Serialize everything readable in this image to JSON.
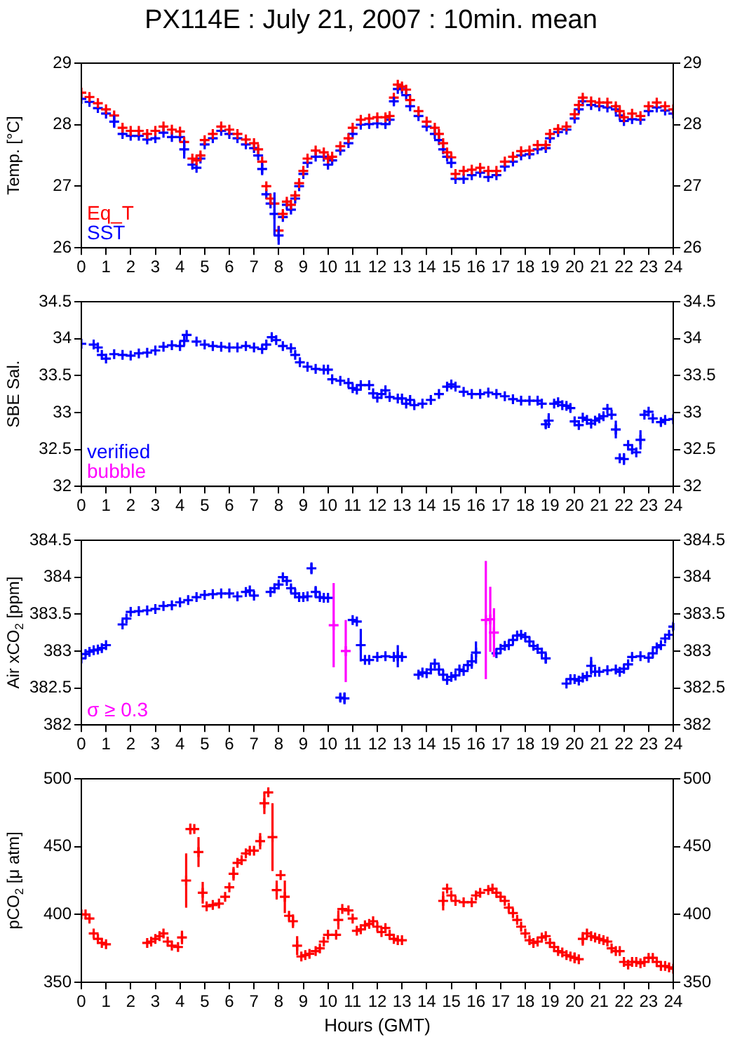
{
  "chart_data": [
    {
      "type": "scatter",
      "title": "PX114E : July 21, 2007 : 10min. mean",
      "ylabel": "Temp. [°C]",
      "legend": "bottom left",
      "marker": "cross",
      "xlim": [
        0,
        24
      ],
      "xticks": [
        0,
        1,
        2,
        3,
        4,
        5,
        6,
        7,
        8,
        9,
        10,
        11,
        12,
        13,
        14,
        15,
        16,
        17,
        18,
        19,
        20,
        21,
        22,
        23,
        24
      ],
      "ylim": [
        26,
        29
      ],
      "yticks": [
        26,
        27,
        28,
        29
      ],
      "y2lim": [
        26,
        29
      ],
      "y2ticks": [
        26,
        27,
        28,
        29
      ],
      "x": [
        0,
        0.33,
        0.67,
        1,
        1.33,
        1.67,
        2,
        2.33,
        2.67,
        3,
        3.33,
        3.67,
        4,
        4.17,
        4.5,
        4.67,
        4.83,
        5,
        5.33,
        5.67,
        6,
        6.33,
        6.67,
        7,
        7.17,
        7.33,
        7.5,
        7.67,
        7.83,
        8,
        8.17,
        8.33,
        8.5,
        8.67,
        8.83,
        9,
        9.17,
        9.5,
        9.83,
        10,
        10.17,
        10.5,
        10.83,
        11,
        11.33,
        11.67,
        12,
        12.33,
        12.5,
        12.67,
        12.83,
        13,
        13.17,
        13.33,
        13.67,
        14,
        14.33,
        14.5,
        14.67,
        14.83,
        15,
        15.17,
        15.5,
        15.83,
        16.17,
        16.5,
        16.83,
        17.17,
        17.5,
        17.83,
        18.17,
        18.5,
        18.83,
        19,
        19.33,
        19.67,
        20,
        20.17,
        20.33,
        20.67,
        21,
        21.33,
        21.67,
        21.83,
        22,
        22.33,
        22.67,
        23,
        23.33,
        23.67,
        24
      ],
      "series": [
        {
          "name": "Eq_T",
          "color": "#ff0000",
          "values": [
            28.52,
            28.45,
            28.35,
            28.25,
            28.15,
            27.95,
            27.9,
            27.9,
            27.85,
            27.9,
            27.97,
            27.92,
            27.89,
            27.72,
            27.45,
            27.42,
            27.5,
            27.75,
            27.85,
            27.97,
            27.92,
            27.85,
            27.76,
            27.7,
            27.6,
            27.4,
            27.0,
            26.8,
            26.72,
            26.28,
            26.55,
            26.75,
            26.7,
            26.85,
            27.05,
            27.25,
            27.45,
            27.58,
            27.55,
            27.45,
            27.48,
            27.65,
            27.78,
            27.95,
            28.08,
            28.1,
            28.12,
            28.12,
            28.14,
            28.44,
            28.65,
            28.62,
            28.57,
            28.4,
            28.22,
            28.05,
            27.95,
            27.85,
            27.7,
            27.55,
            27.47,
            27.2,
            27.25,
            27.27,
            27.3,
            27.25,
            27.25,
            27.4,
            27.48,
            27.57,
            27.58,
            27.67,
            27.67,
            27.85,
            27.93,
            27.97,
            28.17,
            28.32,
            28.44,
            28.38,
            28.36,
            28.36,
            28.3,
            28.22,
            28.12,
            28.18,
            28.14,
            28.3,
            28.36,
            28.3,
            28.25
          ]
        },
        {
          "name": "SST",
          "color": "#0000ff",
          "values": [
            28.42,
            28.37,
            28.27,
            28.18,
            28.05,
            27.85,
            27.82,
            27.82,
            27.76,
            27.78,
            27.87,
            27.8,
            27.8,
            27.6,
            27.35,
            27.3,
            27.45,
            27.68,
            27.78,
            27.9,
            27.85,
            27.78,
            27.68,
            27.62,
            27.5,
            27.28,
            26.87,
            26.72,
            26.55,
            26.2,
            26.5,
            26.7,
            26.62,
            26.8,
            27.0,
            27.2,
            27.38,
            27.48,
            27.48,
            27.35,
            27.42,
            27.58,
            27.7,
            27.85,
            28.0,
            28.01,
            28.02,
            28.01,
            28.08,
            28.38,
            28.58,
            28.58,
            28.48,
            28.3,
            28.14,
            27.97,
            27.85,
            27.75,
            27.6,
            27.48,
            27.38,
            27.12,
            27.12,
            27.18,
            27.22,
            27.15,
            27.18,
            27.32,
            27.4,
            27.5,
            27.52,
            27.6,
            27.62,
            27.78,
            27.88,
            27.92,
            28.1,
            28.25,
            28.38,
            28.32,
            28.3,
            28.28,
            28.25,
            28.15,
            28.06,
            28.09,
            28.08,
            28.22,
            28.28,
            28.23,
            28.18
          ],
          "errors": [
            null,
            null,
            null,
            null,
            0.1,
            null,
            null,
            null,
            null,
            null,
            null,
            null,
            null,
            0.15,
            null,
            null,
            null,
            null,
            null,
            null,
            null,
            null,
            null,
            null,
            null,
            0.1,
            null,
            null,
            0.35,
            0.15,
            null,
            null,
            null,
            null,
            null,
            null,
            null,
            null,
            null,
            null,
            null,
            null,
            null,
            null,
            null,
            null,
            null,
            null,
            null,
            0.07,
            null,
            null,
            null,
            null,
            null,
            null,
            null,
            null,
            null,
            null,
            0.08,
            null,
            null,
            null,
            null,
            null,
            null,
            null,
            null,
            null,
            null,
            null,
            null,
            null,
            null,
            null,
            null,
            null,
            null,
            null,
            null,
            null,
            null,
            null,
            null,
            null,
            null,
            null,
            null,
            null,
            null
          ]
        }
      ]
    },
    {
      "type": "scatter",
      "ylabel": "SBE Sal.",
      "legend": "bottom left",
      "marker": "cross",
      "xlim": [
        0,
        24
      ],
      "xticks": [
        0,
        1,
        2,
        3,
        4,
        5,
        6,
        7,
        8,
        9,
        10,
        11,
        12,
        13,
        14,
        15,
        16,
        17,
        18,
        19,
        20,
        21,
        22,
        23,
        24
      ],
      "ylim": [
        32,
        34.5
      ],
      "yticks": [
        32,
        32.5,
        33,
        33.5,
        34,
        34.5
      ],
      "y2lim": [
        32,
        34.5
      ],
      "y2ticks": [
        32,
        32.5,
        33,
        33.5,
        34,
        34.5
      ],
      "series": [
        {
          "name": "verified",
          "color": "#0000ff",
          "x": [
            0,
            0.5,
            0.67,
            0.83,
            1,
            1.33,
            1.67,
            2,
            2.33,
            2.67,
            3,
            3.33,
            3.67,
            4,
            4.17,
            4.27,
            4.67,
            5,
            5.33,
            5.67,
            6,
            6.33,
            6.67,
            7,
            7.33,
            7.5,
            7.72,
            7.9,
            8.17,
            8.5,
            8.67,
            8.86,
            9.17,
            9.5,
            9.83,
            10,
            10.17,
            10.5,
            10.83,
            11,
            11.17,
            11.33,
            11.67,
            11.83,
            12,
            12.17,
            12.33,
            12.5,
            12.83,
            13,
            13.17,
            13.33,
            13.5,
            13.83,
            14.17,
            14.5,
            14.83,
            15,
            15.17,
            15.5,
            15.83,
            16.17,
            16.5,
            16.83,
            17.17,
            17.5,
            17.83,
            18.17,
            18.5,
            18.67,
            18.83,
            18.95,
            19.17,
            19.33,
            19.5,
            19.67,
            19.83,
            20,
            20.17,
            20.33,
            20.5,
            20.67,
            20.83,
            21,
            21.17,
            21.33,
            21.5,
            21.67,
            21.83,
            22,
            22.17,
            22.33,
            22.5,
            22.67,
            22.83,
            23,
            23.17,
            23.5,
            23.67,
            24
          ],
          "values": [
            33.93,
            33.92,
            33.88,
            33.78,
            33.73,
            33.79,
            33.78,
            33.77,
            33.8,
            33.81,
            33.84,
            33.89,
            33.91,
            33.9,
            33.97,
            34.05,
            33.96,
            33.92,
            33.9,
            33.89,
            33.88,
            33.88,
            33.9,
            33.88,
            33.86,
            33.92,
            34.02,
            33.98,
            33.9,
            33.87,
            33.78,
            33.68,
            33.62,
            33.59,
            33.58,
            33.58,
            33.45,
            33.43,
            33.4,
            33.33,
            33.31,
            33.37,
            33.37,
            33.26,
            33.2,
            33.25,
            33.3,
            33.21,
            33.19,
            33.19,
            33.12,
            33.17,
            33.1,
            33.12,
            33.17,
            33.25,
            33.35,
            33.38,
            33.35,
            33.28,
            33.25,
            33.25,
            33.27,
            33.25,
            33.22,
            33.18,
            33.16,
            33.16,
            33.16,
            33.12,
            32.84,
            32.89,
            33.12,
            33.14,
            33.1,
            33.09,
            33.06,
            32.88,
            32.83,
            32.93,
            32.9,
            32.85,
            32.89,
            32.92,
            32.95,
            33.05,
            32.97,
            32.77,
            32.38,
            32.37,
            32.56,
            32.5,
            32.46,
            32.63,
            32.97,
            33.01,
            32.92,
            32.87,
            32.9,
            32.91
          ],
          "errors": [
            null,
            null,
            null,
            null,
            null,
            null,
            null,
            null,
            null,
            null,
            null,
            null,
            null,
            null,
            null,
            null,
            null,
            null,
            null,
            null,
            null,
            null,
            null,
            null,
            null,
            null,
            null,
            null,
            null,
            null,
            null,
            null,
            null,
            null,
            null,
            null,
            null,
            null,
            null,
            null,
            null,
            null,
            null,
            null,
            null,
            null,
            null,
            null,
            null,
            null,
            null,
            null,
            null,
            null,
            null,
            null,
            null,
            null,
            null,
            null,
            null,
            null,
            null,
            null,
            null,
            null,
            null,
            null,
            null,
            null,
            0.05,
            0.1,
            null,
            null,
            null,
            null,
            0.05,
            null,
            null,
            null,
            null,
            null,
            null,
            null,
            null,
            null,
            null,
            0.12,
            null,
            0.08,
            null,
            null,
            null,
            0.13,
            null,
            null,
            null,
            0.05,
            null,
            null
          ]
        },
        {
          "name": "bubble",
          "color": "#ff00ff"
        }
      ]
    },
    {
      "type": "scatter",
      "ylabel": "Air xCO$_{2}$ [ppm]",
      "legend": "bottom left",
      "marker": "cross",
      "xlim": [
        0,
        24
      ],
      "xticks": [
        0,
        1,
        2,
        3,
        4,
        5,
        6,
        7,
        8,
        9,
        10,
        11,
        12,
        13,
        14,
        15,
        16,
        17,
        18,
        19,
        20,
        21,
        22,
        23,
        24
      ],
      "ylim": [
        382,
        384.5
      ],
      "yticks": [
        382,
        382.5,
        383,
        383.5,
        384,
        384.5
      ],
      "y2lim": [
        382,
        384.5
      ],
      "y2ticks": [
        382,
        382.5,
        383,
        383.5,
        384,
        384.5
      ],
      "series": [
        {
          "color": "#0000ff",
          "x": [
            0,
            0.17,
            0.33,
            0.5,
            0.67,
            0.83,
            1,
            1.67,
            1.83,
            2,
            2.33,
            2.67,
            3,
            3.33,
            3.67,
            4,
            4.33,
            4.67,
            5,
            5.33,
            5.67,
            6,
            6.33,
            6.67,
            6.83,
            7,
            7.67,
            7.83,
            8,
            8.17,
            8.33,
            8.5,
            8.67,
            8.83,
            9,
            9.17,
            9.33,
            9.5,
            9.67,
            9.83,
            10,
            10.5,
            10.67,
            11,
            11.17,
            11.33,
            11.5,
            11.67,
            12,
            12.33,
            12.67,
            12.83,
            13,
            13.67,
            13.83,
            14,
            14.17,
            14.33,
            14.5,
            14.67,
            14.83,
            15,
            15.17,
            15.33,
            15.5,
            15.67,
            15.83,
            16,
            16.83,
            17,
            17.17,
            17.33,
            17.5,
            17.67,
            17.83,
            18,
            18.17,
            18.33,
            18.5,
            18.67,
            18.83,
            19.67,
            19.83,
            20,
            20.17,
            20.33,
            20.5,
            20.67,
            20.83,
            21,
            21.33,
            21.67,
            21.83,
            22,
            22.17,
            22.33,
            22.67,
            23,
            23.17,
            23.33,
            23.5,
            23.67,
            23.83,
            24
          ],
          "values": [
            382.9,
            382.96,
            382.99,
            383.01,
            383.02,
            383.04,
            383.08,
            383.36,
            383.44,
            383.53,
            383.54,
            383.55,
            383.57,
            383.61,
            383.62,
            383.66,
            383.69,
            383.73,
            383.76,
            383.77,
            383.78,
            383.78,
            383.74,
            383.8,
            383.82,
            383.75,
            383.8,
            383.85,
            383.9,
            384,
            383.95,
            383.85,
            383.78,
            383.73,
            383.73,
            383.74,
            384.12,
            383.8,
            383.73,
            383.72,
            383.72,
            382.37,
            382.36,
            383.42,
            383.4,
            383.08,
            382.88,
            382.88,
            382.92,
            382.93,
            382.92,
            382.93,
            382.92,
            382.68,
            382.71,
            382.7,
            382.75,
            382.83,
            382.75,
            382.68,
            382.61,
            382.65,
            382.67,
            382.75,
            382.73,
            382.81,
            382.86,
            382.98,
            382.97,
            383.03,
            383.07,
            383.08,
            383.15,
            383.21,
            383.22,
            383.19,
            383.13,
            383.07,
            383.03,
            382.98,
            382.9,
            382.56,
            382.62,
            382.62,
            382.6,
            382.64,
            382.66,
            382.8,
            382.72,
            382.72,
            382.74,
            382.75,
            382.72,
            382.76,
            382.82,
            382.92,
            382.93,
            382.91,
            382.97,
            383.05,
            383.08,
            383.17,
            383.22,
            383.33
          ],
          "errors": [
            null,
            null,
            null,
            null,
            null,
            null,
            null,
            null,
            null,
            null,
            null,
            null,
            null,
            null,
            null,
            null,
            null,
            null,
            null,
            null,
            null,
            null,
            null,
            null,
            null,
            null,
            null,
            null,
            null,
            null,
            null,
            null,
            null,
            null,
            null,
            null,
            0.08,
            0.08,
            null,
            null,
            null,
            0.05,
            0.08,
            null,
            null,
            0.22,
            null,
            null,
            null,
            null,
            null,
            0.15,
            null,
            null,
            null,
            null,
            null,
            null,
            null,
            null,
            null,
            null,
            null,
            null,
            null,
            null,
            0.1,
            0.15,
            null,
            null,
            null,
            null,
            null,
            null,
            null,
            null,
            null,
            null,
            null,
            null,
            0.07,
            null,
            null,
            null,
            null,
            null,
            null,
            0.12,
            null,
            null,
            null,
            null,
            null,
            null,
            null,
            null,
            null,
            null,
            null,
            null,
            null,
            null,
            null,
            0.05
          ]
        },
        {
          "name": "σ ≥ 0.3",
          "color": "#ff00ff",
          "x": [
            10.23,
            10.72,
            16.4,
            16.58,
            16.73
          ],
          "values": [
            383.35,
            383.0,
            383.42,
            383.43,
            383.25
          ],
          "errors": [
            0.57,
            0.42,
            0.8,
            0.44,
            0.33
          ]
        }
      ]
    },
    {
      "type": "scatter",
      "ylabel": "pCO$_{2}$ [μ atm]",
      "xlabel": "Hours (GMT)",
      "marker": "cross",
      "xlim": [
        0,
        24
      ],
      "xticks": [
        0,
        1,
        2,
        3,
        4,
        5,
        6,
        7,
        8,
        9,
        10,
        11,
        12,
        13,
        14,
        15,
        16,
        17,
        18,
        19,
        20,
        21,
        22,
        23,
        24
      ],
      "ylim": [
        350,
        500
      ],
      "yticks": [
        350,
        400,
        450,
        500
      ],
      "y2lim": [
        350,
        500
      ],
      "y2ticks": [
        350,
        400,
        450,
        500
      ],
      "series": [
        {
          "color": "#ff0000",
          "x": [
            0,
            0.17,
            0.33,
            0.5,
            0.67,
            0.83,
            1,
            2.67,
            2.83,
            3,
            3.17,
            3.33,
            3.5,
            3.67,
            3.92,
            4.08,
            4.25,
            4.42,
            4.58,
            4.75,
            4.92,
            5.08,
            5.33,
            5.58,
            5.83,
            6,
            6.17,
            6.33,
            6.5,
            6.67,
            6.83,
            7,
            7.25,
            7.42,
            7.58,
            7.75,
            7.92,
            8.08,
            8.25,
            8.42,
            8.58,
            8.75,
            8.92,
            9.08,
            9.25,
            9.5,
            9.67,
            9.83,
            10,
            10.33,
            10.42,
            10.58,
            10.83,
            11,
            11.17,
            11.33,
            11.5,
            11.67,
            11.83,
            12,
            12.17,
            12.33,
            12.5,
            12.67,
            12.83,
            13,
            14.67,
            14.83,
            15,
            15.17,
            15.5,
            15.83,
            16,
            16.17,
            16.5,
            16.67,
            16.83,
            17,
            17.17,
            17.33,
            17.5,
            17.67,
            17.83,
            18,
            18.17,
            18.33,
            18.5,
            18.67,
            18.83,
            19,
            19.17,
            19.33,
            19.5,
            19.67,
            19.83,
            20,
            20.17,
            20.33,
            20.5,
            20.67,
            20.83,
            21,
            21.17,
            21.33,
            21.5,
            21.67,
            21.83,
            22,
            22.17,
            22.33,
            22.5,
            22.67,
            22.83,
            23,
            23.17,
            23.33,
            23.5,
            23.67,
            23.83,
            24
          ],
          "values": [
            400,
            400,
            397,
            386,
            382,
            379,
            378,
            379,
            380,
            382,
            384,
            386,
            380,
            377,
            376,
            383,
            425,
            463,
            463,
            446,
            416,
            406,
            407,
            408,
            413,
            420,
            430,
            438,
            440,
            445,
            447,
            447,
            454,
            482,
            490,
            457,
            418,
            429,
            413,
            399,
            395,
            377,
            369,
            370,
            371,
            373,
            375,
            380,
            385,
            385,
            396,
            404,
            403,
            397,
            388,
            389,
            392,
            393,
            395,
            391,
            387,
            390,
            385,
            382,
            381,
            381,
            410,
            419,
            414,
            410,
            409,
            409,
            414,
            416,
            418,
            419,
            416,
            413,
            410,
            405,
            401,
            396,
            391,
            386,
            381,
            379,
            380,
            383,
            384,
            379,
            376,
            373,
            372,
            370,
            369,
            368,
            367,
            382,
            386,
            384,
            383,
            382,
            381,
            380,
            375,
            373,
            373,
            365,
            363,
            365,
            365,
            364,
            365,
            368,
            368,
            365,
            362,
            362,
            361,
            360
          ],
          "errors": [
            null,
            null,
            null,
            null,
            null,
            null,
            null,
            null,
            null,
            null,
            null,
            null,
            null,
            null,
            null,
            5,
            20,
            4,
            null,
            11,
            8,
            null,
            null,
            null,
            null,
            null,
            5,
            null,
            null,
            null,
            null,
            null,
            6,
            8,
            null,
            25,
            7,
            null,
            12,
            null,
            5,
            7,
            null,
            null,
            null,
            null,
            null,
            null,
            null,
            null,
            7,
            null,
            null,
            null,
            null,
            null,
            null,
            null,
            null,
            null,
            null,
            null,
            null,
            null,
            null,
            null,
            7,
            null,
            null,
            null,
            null,
            null,
            null,
            null,
            null,
            null,
            null,
            null,
            null,
            null,
            null,
            null,
            null,
            null,
            null,
            null,
            null,
            null,
            null,
            null,
            null,
            null,
            null,
            null,
            null,
            4,
            null,
            5,
            null,
            null,
            null,
            null,
            null,
            null,
            null,
            null,
            null,
            null,
            null,
            null,
            null,
            null,
            null,
            null,
            null,
            null,
            null,
            null,
            null,
            null
          ]
        }
      ]
    }
  ]
}
